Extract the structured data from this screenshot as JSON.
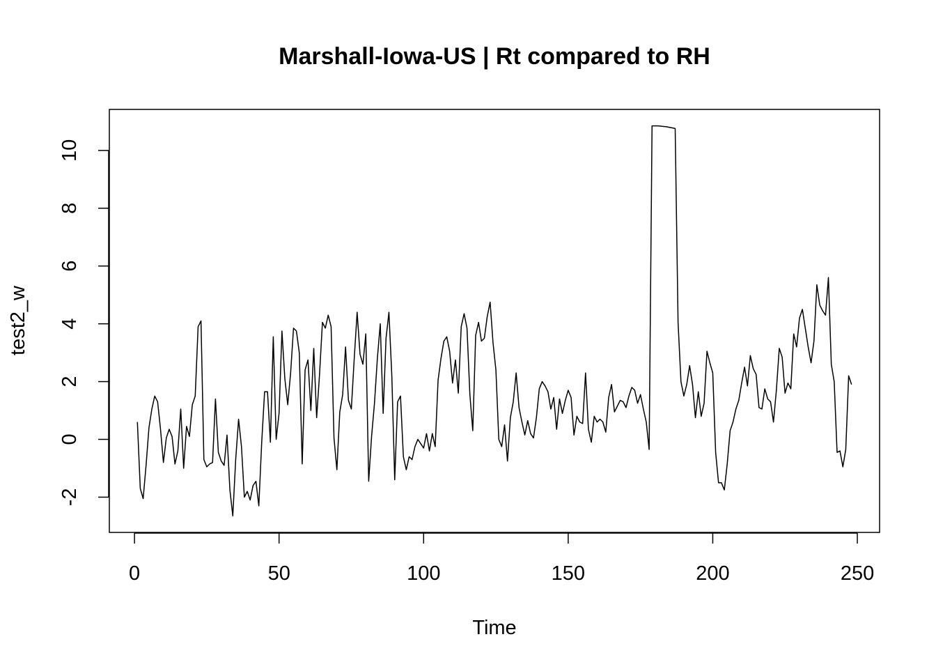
{
  "chart_data": {
    "type": "line",
    "title": "Marshall-Iowa-US | Rt compared to RH",
    "xlabel": "Time",
    "ylabel": "test2_w",
    "xlim": [
      -8.7,
      257.7
    ],
    "ylim": [
      -3.22,
      11.42
    ],
    "grid": false,
    "legend": "none",
    "x_ticks": [
      0,
      50,
      100,
      150,
      200,
      250
    ],
    "y_ticks": [
      -2,
      0,
      2,
      4,
      6,
      8,
      10
    ],
    "x_tick_labels": [
      "0",
      "50",
      "100",
      "150",
      "200",
      "250"
    ],
    "y_tick_labels": [
      "-2",
      "0",
      "2",
      "4",
      "6",
      "8",
      "10"
    ],
    "series": [
      {
        "name": "test2_w",
        "x_start": 1,
        "x_step": 1,
        "values": [
          0.6,
          -1.7,
          -2.05,
          -0.9,
          0.4,
          1.05,
          1.5,
          1.3,
          0.35,
          -0.8,
          0.05,
          0.35,
          0.1,
          -0.85,
          -0.4,
          1.05,
          -1.0,
          0.45,
          0.1,
          1.2,
          1.5,
          3.9,
          4.1,
          -0.7,
          -0.95,
          -0.85,
          -0.8,
          1.4,
          -0.45,
          -0.75,
          -0.9,
          0.15,
          -1.75,
          -2.65,
          -0.7,
          0.7,
          -0.25,
          -2.0,
          -1.8,
          -2.1,
          -1.6,
          -1.45,
          -2.3,
          -0.1,
          1.65,
          1.65,
          -0.1,
          3.55,
          0.0,
          0.9,
          3.75,
          2.1,
          1.2,
          2.3,
          3.85,
          3.75,
          3.0,
          -0.85,
          2.4,
          2.75,
          1.0,
          3.15,
          0.75,
          2.25,
          4.05,
          3.85,
          4.3,
          3.9,
          0.05,
          -1.05,
          0.95,
          1.55,
          3.2,
          1.35,
          1.05,
          2.8,
          4.4,
          2.95,
          2.6,
          3.65,
          -1.45,
          0.1,
          1.25,
          2.8,
          4.0,
          0.9,
          3.5,
          4.4,
          2.2,
          -1.4,
          1.3,
          1.5,
          -0.6,
          -1.05,
          -0.6,
          -0.7,
          -0.25,
          0.0,
          -0.15,
          -0.3,
          0.2,
          -0.4,
          0.2,
          -0.25,
          2.05,
          2.8,
          3.4,
          3.55,
          3.05,
          1.95,
          2.75,
          1.6,
          3.9,
          4.35,
          3.85,
          1.55,
          0.3,
          3.6,
          4.05,
          3.4,
          3.5,
          4.25,
          4.75,
          3.35,
          2.4,
          0.0,
          -0.25,
          0.5,
          -0.75,
          0.75,
          1.3,
          2.3,
          1.1,
          0.6,
          0.15,
          0.65,
          0.2,
          0.05,
          0.75,
          1.75,
          2.0,
          1.85,
          1.65,
          1.05,
          1.45,
          0.35,
          1.4,
          0.9,
          1.35,
          1.7,
          1.45,
          0.15,
          0.8,
          0.6,
          0.55,
          2.3,
          0.35,
          -0.1,
          0.8,
          0.6,
          0.7,
          0.6,
          0.25,
          1.45,
          1.9,
          0.95,
          1.15,
          1.35,
          1.3,
          1.1,
          1.5,
          1.8,
          1.7,
          1.25,
          1.55,
          1.05,
          0.6,
          -0.35,
          10.85,
          10.85,
          10.85,
          10.84,
          10.83,
          10.82,
          10.8,
          10.78,
          10.76,
          4.05,
          2.0,
          1.5,
          1.9,
          2.55,
          1.9,
          0.75,
          1.65,
          0.8,
          1.25,
          3.05,
          2.65,
          2.3,
          -0.45,
          -1.5,
          -1.5,
          -1.75,
          -0.85,
          0.3,
          0.6,
          1.05,
          1.35,
          1.95,
          2.5,
          1.85,
          2.9,
          2.45,
          2.25,
          1.1,
          1.05,
          1.75,
          1.4,
          1.3,
          0.6,
          1.7,
          3.15,
          2.85,
          1.6,
          1.95,
          1.75,
          3.65,
          3.2,
          4.2,
          4.5,
          3.85,
          3.2,
          2.65,
          3.4,
          5.35,
          4.65,
          4.45,
          4.3,
          5.6,
          2.6,
          2.0,
          -0.45,
          -0.4,
          -0.95,
          -0.35,
          2.2,
          1.9
        ]
      }
    ]
  }
}
